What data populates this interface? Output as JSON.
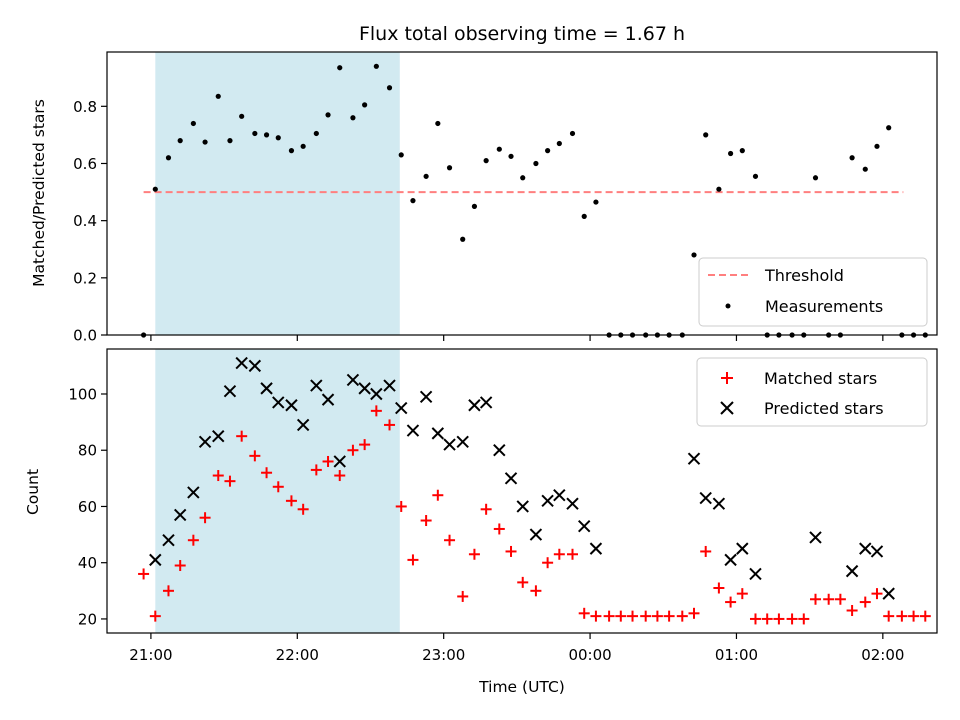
{
  "chart_data": [
    {
      "type": "scatter",
      "title": "Flux total observing time = 1.67 h",
      "xlabel": "",
      "ylabel": "Matched/Predicted stars",
      "ylim": [
        0,
        0.99
      ],
      "yticks": [
        "0.0",
        "0.2",
        "0.4",
        "0.6",
        "0.8"
      ],
      "ytick_values": [
        0,
        0.2,
        0.4,
        0.6,
        0.8
      ],
      "threshold": {
        "name": "Threshold",
        "value": 0.5,
        "x_range": [
          -0.05,
          5.14
        ],
        "color": "#ff7f7f"
      },
      "observing_window": {
        "start": 0.03,
        "end": 1.7,
        "color": "#add8e6"
      },
      "legend": {
        "position": "lower-right",
        "entries": [
          "Threshold",
          "Measurements"
        ]
      },
      "series": [
        {
          "name": "Measurements",
          "color": "#000000",
          "points": [
            [
              -0.05,
              0.0
            ],
            [
              0.03,
              0.51
            ],
            [
              0.12,
              0.62
            ],
            [
              0.2,
              0.68
            ],
            [
              0.29,
              0.74
            ],
            [
              0.37,
              0.675
            ],
            [
              0.46,
              0.835
            ],
            [
              0.54,
              0.68
            ],
            [
              0.62,
              0.765
            ],
            [
              0.71,
              0.705
            ],
            [
              0.79,
              0.7
            ],
            [
              0.87,
              0.69
            ],
            [
              0.96,
              0.645
            ],
            [
              1.04,
              0.66
            ],
            [
              1.13,
              0.705
            ],
            [
              1.21,
              0.77
            ],
            [
              1.29,
              0.935
            ],
            [
              1.38,
              0.76
            ],
            [
              1.46,
              0.805
            ],
            [
              1.54,
              0.94
            ],
            [
              1.63,
              0.865
            ],
            [
              1.71,
              0.63
            ],
            [
              1.79,
              0.47
            ],
            [
              1.88,
              0.555
            ],
            [
              1.96,
              0.74
            ],
            [
              2.04,
              0.585
            ],
            [
              2.13,
              0.335
            ],
            [
              2.21,
              0.45
            ],
            [
              2.29,
              0.61
            ],
            [
              2.38,
              0.65
            ],
            [
              2.46,
              0.625
            ],
            [
              2.54,
              0.55
            ],
            [
              2.63,
              0.6
            ],
            [
              2.71,
              0.645
            ],
            [
              2.79,
              0.67
            ],
            [
              2.88,
              0.705
            ],
            [
              2.96,
              0.415
            ],
            [
              3.04,
              0.465
            ],
            [
              3.13,
              0.0
            ],
            [
              3.21,
              0.0
            ],
            [
              3.29,
              0.0
            ],
            [
              3.38,
              0.0
            ],
            [
              3.46,
              0.0
            ],
            [
              3.54,
              0.0
            ],
            [
              3.63,
              0.0
            ],
            [
              3.71,
              0.28
            ],
            [
              3.79,
              0.7
            ],
            [
              3.88,
              0.51
            ],
            [
              3.96,
              0.635
            ],
            [
              4.04,
              0.645
            ],
            [
              4.13,
              0.555
            ],
            [
              4.21,
              0.0
            ],
            [
              4.29,
              0.0
            ],
            [
              4.38,
              0.0
            ],
            [
              4.46,
              0.0
            ],
            [
              4.54,
              0.55
            ],
            [
              4.63,
              0.0
            ],
            [
              4.71,
              0.0
            ],
            [
              4.79,
              0.62
            ],
            [
              4.88,
              0.58
            ],
            [
              4.96,
              0.66
            ],
            [
              5.04,
              0.725
            ],
            [
              5.13,
              0.0
            ],
            [
              5.21,
              0.0
            ],
            [
              5.29,
              0.0
            ]
          ]
        }
      ]
    },
    {
      "type": "scatter",
      "title": "",
      "xlabel": "Time (UTC)",
      "ylabel": "Count",
      "xlim": [
        -0.3,
        5.37
      ],
      "ylim": [
        15,
        116
      ],
      "yticks": [
        "20",
        "40",
        "60",
        "80",
        "100"
      ],
      "ytick_values": [
        20,
        40,
        60,
        80,
        100
      ],
      "xticks": [
        "21:00",
        "22:00",
        "23:00",
        "00:00",
        "01:00",
        "02:00"
      ],
      "xtick_values": [
        0,
        1,
        2,
        3,
        4,
        5
      ],
      "observing_window": {
        "start": 0.03,
        "end": 1.7,
        "color": "#add8e6"
      },
      "legend": {
        "position": "top-right",
        "entries": [
          "Matched stars",
          "Predicted stars"
        ]
      },
      "series": [
        {
          "name": "Matched stars",
          "marker": "plus",
          "color": "#ff0000",
          "points": [
            [
              -0.05,
              36
            ],
            [
              0.03,
              21
            ],
            [
              0.12,
              30
            ],
            [
              0.2,
              39
            ],
            [
              0.29,
              48
            ],
            [
              0.37,
              56
            ],
            [
              0.46,
              71
            ],
            [
              0.54,
              69
            ],
            [
              0.62,
              85
            ],
            [
              0.71,
              78
            ],
            [
              0.79,
              72
            ],
            [
              0.87,
              67
            ],
            [
              0.96,
              62
            ],
            [
              1.04,
              59
            ],
            [
              1.13,
              73
            ],
            [
              1.21,
              76
            ],
            [
              1.29,
              71
            ],
            [
              1.38,
              80
            ],
            [
              1.46,
              82
            ],
            [
              1.54,
              94
            ],
            [
              1.63,
              89
            ],
            [
              1.71,
              60
            ],
            [
              1.79,
              41
            ],
            [
              1.88,
              55
            ],
            [
              1.96,
              64
            ],
            [
              2.04,
              48
            ],
            [
              2.13,
              28
            ],
            [
              2.21,
              43
            ],
            [
              2.29,
              59
            ],
            [
              2.38,
              52
            ],
            [
              2.46,
              44
            ],
            [
              2.54,
              33
            ],
            [
              2.63,
              30
            ],
            [
              2.71,
              40
            ],
            [
              2.79,
              43
            ],
            [
              2.88,
              43
            ],
            [
              2.96,
              22
            ],
            [
              3.04,
              21
            ],
            [
              3.13,
              21
            ],
            [
              3.21,
              21
            ],
            [
              3.29,
              21
            ],
            [
              3.38,
              21
            ],
            [
              3.46,
              21
            ],
            [
              3.54,
              21
            ],
            [
              3.63,
              21
            ],
            [
              3.71,
              22
            ],
            [
              3.79,
              44
            ],
            [
              3.88,
              31
            ],
            [
              3.96,
              26
            ],
            [
              4.04,
              29
            ],
            [
              4.13,
              20
            ],
            [
              4.21,
              20
            ],
            [
              4.29,
              20
            ],
            [
              4.38,
              20
            ],
            [
              4.46,
              20
            ],
            [
              4.54,
              27
            ],
            [
              4.63,
              27
            ],
            [
              4.71,
              27
            ],
            [
              4.79,
              23
            ],
            [
              4.88,
              26
            ],
            [
              4.96,
              29
            ],
            [
              5.04,
              21
            ],
            [
              5.13,
              21
            ],
            [
              5.21,
              21
            ],
            [
              5.29,
              21
            ]
          ]
        },
        {
          "name": "Predicted stars",
          "marker": "x",
          "color": "#000000",
          "points": [
            [
              0.03,
              41
            ],
            [
              0.12,
              48
            ],
            [
              0.2,
              57
            ],
            [
              0.29,
              65
            ],
            [
              0.37,
              83
            ],
            [
              0.46,
              85
            ],
            [
              0.54,
              101
            ],
            [
              0.62,
              111
            ],
            [
              0.71,
              110
            ],
            [
              0.79,
              102
            ],
            [
              0.87,
              97
            ],
            [
              0.96,
              96
            ],
            [
              1.04,
              89
            ],
            [
              1.13,
              103
            ],
            [
              1.21,
              98
            ],
            [
              1.29,
              76
            ],
            [
              1.38,
              105
            ],
            [
              1.46,
              102
            ],
            [
              1.54,
              100
            ],
            [
              1.63,
              103
            ],
            [
              1.71,
              95
            ],
            [
              1.79,
              87
            ],
            [
              1.88,
              99
            ],
            [
              1.96,
              86
            ],
            [
              2.04,
              82
            ],
            [
              2.13,
              83
            ],
            [
              2.21,
              96
            ],
            [
              2.29,
              97
            ],
            [
              2.38,
              80
            ],
            [
              2.46,
              70
            ],
            [
              2.54,
              60
            ],
            [
              2.63,
              50
            ],
            [
              2.71,
              62
            ],
            [
              2.79,
              64
            ],
            [
              2.88,
              61
            ],
            [
              2.96,
              53
            ],
            [
              3.04,
              45
            ],
            [
              3.71,
              77
            ],
            [
              3.79,
              63
            ],
            [
              3.88,
              61
            ],
            [
              3.96,
              41
            ],
            [
              4.04,
              45
            ],
            [
              4.13,
              36
            ],
            [
              4.54,
              49
            ],
            [
              4.79,
              37
            ],
            [
              4.88,
              45
            ],
            [
              4.96,
              44
            ],
            [
              5.04,
              29
            ]
          ]
        }
      ]
    }
  ]
}
